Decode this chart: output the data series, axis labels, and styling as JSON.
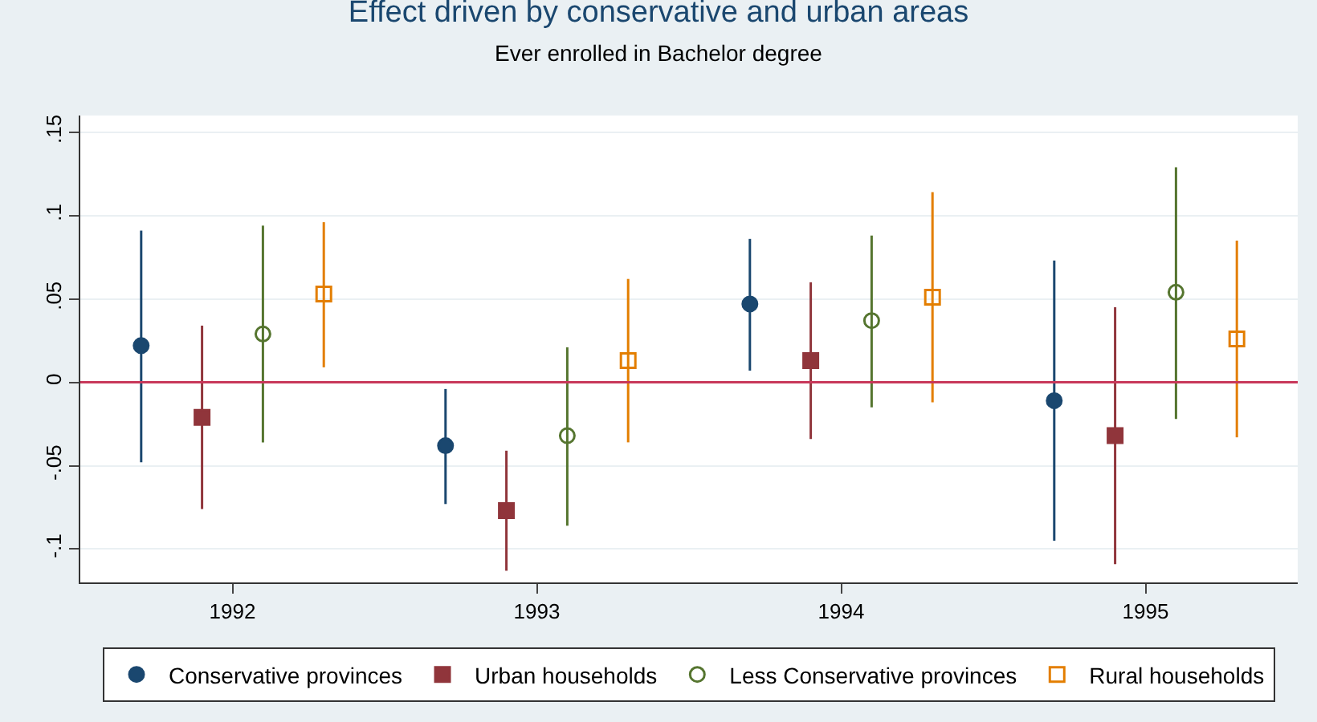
{
  "chart_data": {
    "type": "scatter",
    "title": "Effect driven by conservative and urban areas",
    "subtitle": "Ever enrolled in Bachelor degree",
    "xlim": [
      1991.5,
      1995.5
    ],
    "xticks": [
      1992,
      1993,
      1994,
      1995
    ],
    "ylim": [
      -0.12,
      0.16
    ],
    "yticks": [
      {
        "value": 0.15,
        "label": ".15"
      },
      {
        "value": 0.1,
        "label": ".1"
      },
      {
        "value": 0.05,
        "label": ".05"
      },
      0,
      {
        "value": -0.05,
        "label": "-.05"
      },
      {
        "value": -0.1,
        "label": "-.1"
      }
    ],
    "grid": "y",
    "legend": "bottom",
    "ref_lines": [
      {
        "axis": "y",
        "value": 0,
        "color": "#c8385a"
      }
    ],
    "series": [
      {
        "name": "Conservative provinces",
        "color": "#1a476f",
        "marker": "circle",
        "x": [
          1991.7,
          1992.7,
          1993.7,
          1994.7
        ],
        "values": [
          0.022,
          -0.038,
          0.047,
          -0.011
        ],
        "errors": [
          [
            -0.048,
            0.091
          ],
          [
            -0.073,
            -0.004
          ],
          [
            0.007,
            0.086
          ],
          [
            -0.095,
            0.073
          ]
        ]
      },
      {
        "name": "Urban households",
        "color": "#90353b",
        "marker": "square",
        "x": [
          1991.9,
          1992.9,
          1993.9,
          1994.9
        ],
        "values": [
          -0.021,
          -0.077,
          0.013,
          -0.032
        ],
        "errors": [
          [
            -0.076,
            0.034
          ],
          [
            -0.113,
            -0.041
          ],
          [
            -0.034,
            0.06
          ],
          [
            -0.109,
            0.045
          ]
        ]
      },
      {
        "name": "Less Conservative provinces",
        "color": "#55752f",
        "marker": "circle-open",
        "x": [
          1992.1,
          1993.1,
          1994.1,
          1995.1
        ],
        "values": [
          0.029,
          -0.032,
          0.037,
          0.054
        ],
        "errors": [
          [
            -0.036,
            0.094
          ],
          [
            -0.086,
            0.021
          ],
          [
            -0.015,
            0.088
          ],
          [
            -0.022,
            0.129
          ]
        ]
      },
      {
        "name": "Rural households",
        "color": "#e37e00",
        "marker": "square-open",
        "x": [
          1992.3,
          1993.3,
          1994.3,
          1995.3
        ],
        "values": [
          0.053,
          0.013,
          0.051,
          0.026
        ],
        "errors": [
          [
            0.009,
            0.096
          ],
          [
            -0.036,
            0.062
          ],
          [
            -0.012,
            0.114
          ],
          [
            -0.033,
            0.085
          ]
        ]
      }
    ]
  }
}
